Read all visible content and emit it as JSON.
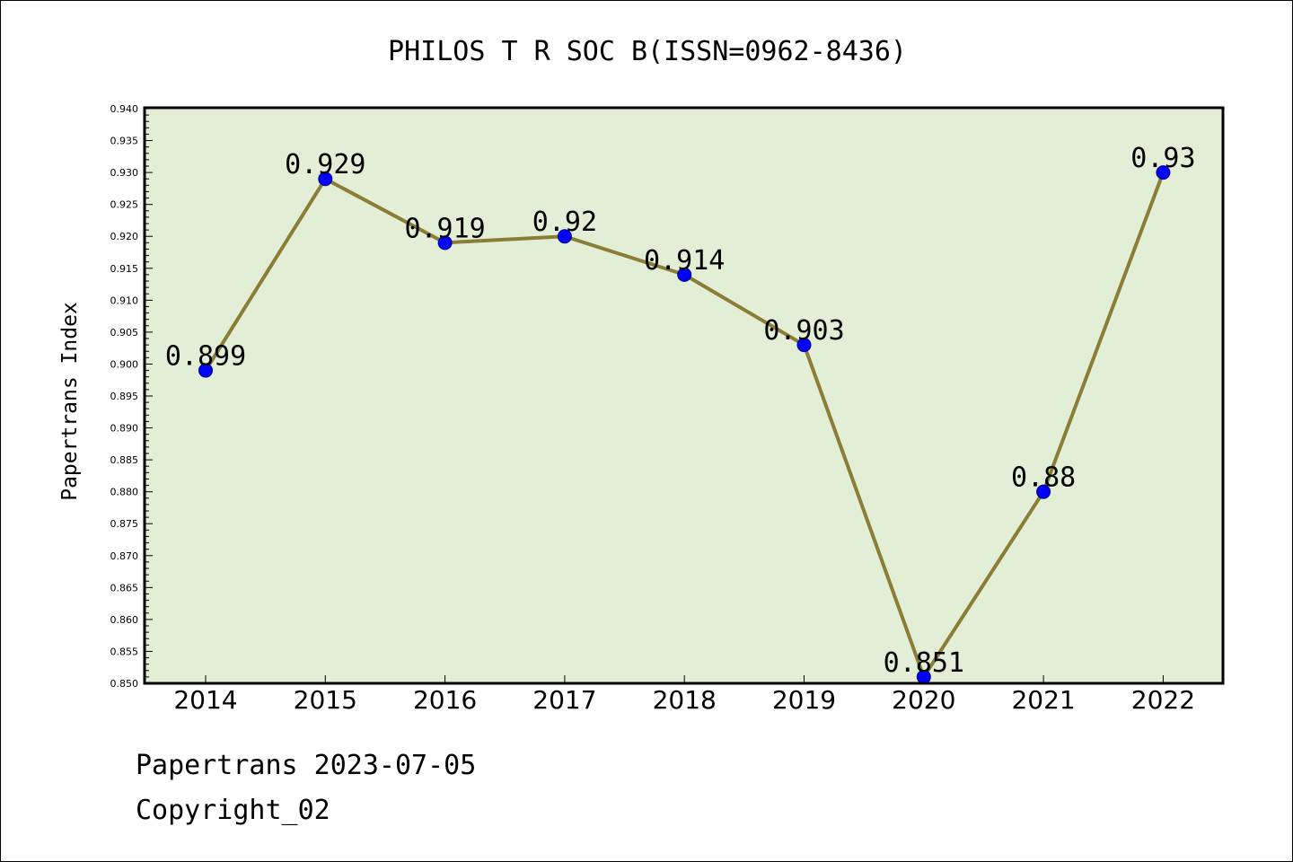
{
  "chart_data": {
    "type": "line",
    "title": "PHILOS T R SOC B(ISSN=0962-8436)",
    "xlabel": "",
    "ylabel": "Papertrans Index",
    "categories": [
      "2014",
      "2015",
      "2016",
      "2017",
      "2018",
      "2019",
      "2020",
      "2021",
      "2022"
    ],
    "values": [
      0.899,
      0.929,
      0.919,
      0.92,
      0.914,
      0.903,
      0.851,
      0.88,
      0.93
    ],
    "data_labels": [
      "0.899",
      "0.929",
      "0.919",
      "0.92",
      "0.914",
      "0.903",
      "0.851",
      "0.88",
      "0.93"
    ],
    "ylim": [
      0.85,
      0.94
    ],
    "yticks": [
      "0.850",
      "0.855",
      "0.860",
      "0.865",
      "0.870",
      "0.875",
      "0.880",
      "0.885",
      "0.890",
      "0.895",
      "0.900",
      "0.905",
      "0.910",
      "0.915",
      "0.920",
      "0.925",
      "0.930",
      "0.935",
      "0.940"
    ],
    "grid": false,
    "legend": "none",
    "colors": {
      "plot_background": "#e2efd6",
      "line": "#8b7d35",
      "marker": "#0000ff",
      "marker_edge": "#000080",
      "axis": "#000000"
    }
  },
  "footer": {
    "line1": "Papertrans 2023-07-05",
    "line2": "Copyright_02"
  }
}
